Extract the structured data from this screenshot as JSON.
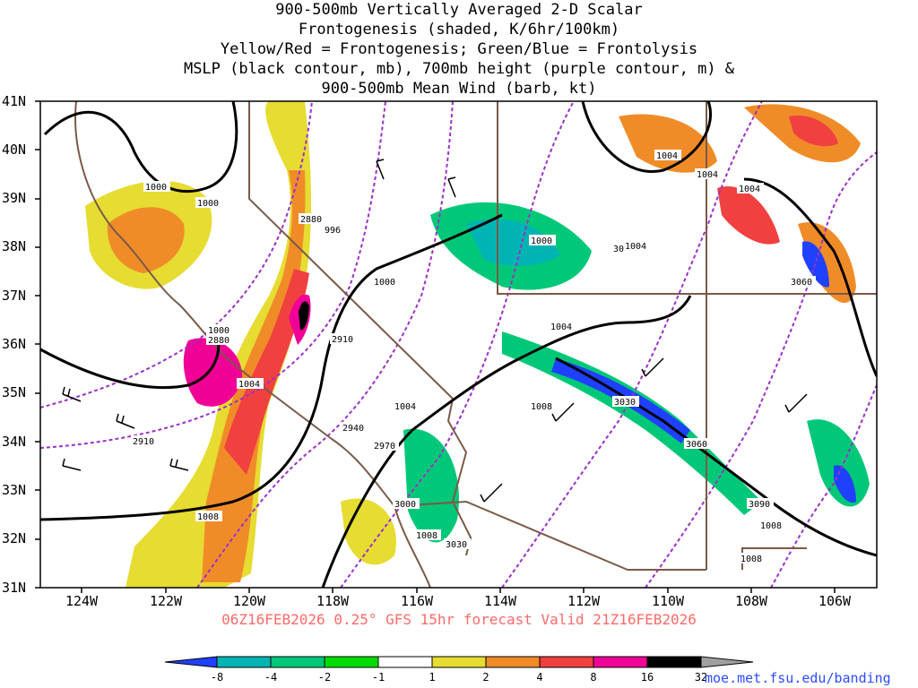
{
  "title_lines": [
    "900-500mb Vertically Averaged 2-D Scalar",
    "Frontogenesis (shaded, K/6hr/100km)",
    "Yellow/Red = Frontogenesis;  Green/Blue = Frontolysis",
    "MSLP (black contour, mb), 700mb height (purple contour, m) &",
    "900-500mb Mean Wind (barb, kt)"
  ],
  "footer": "06Z16FEB2026 0.25° GFS 15hr forecast Valid 21Z16FEB2026",
  "credit": "moe.met.fsu.edu/banding",
  "map": {
    "lon_range": [
      -125,
      -105
    ],
    "lat_range": [
      31,
      41
    ],
    "lon_ticks": [
      "124W",
      "122W",
      "120W",
      "118W",
      "116W",
      "114W",
      "112W",
      "110W",
      "108W",
      "106W"
    ],
    "lat_ticks": [
      "41N",
      "40N",
      "39N",
      "38N",
      "37N",
      "36N",
      "35N",
      "34N",
      "33N",
      "32N",
      "31N"
    ]
  },
  "colorbar": {
    "labels": [
      "-8",
      "-4",
      "-2",
      "-1",
      "1",
      "2",
      "4",
      "8",
      "16",
      "32"
    ],
    "colors": [
      "#2040ff",
      "#00b4b4",
      "#00c878",
      "#00dc00",
      "#ffffff",
      "#e6dc32",
      "#f08c28",
      "#f04040",
      "#f00096",
      "#000000",
      "#a0a0a0"
    ]
  },
  "mslp_labels": [
    "1000",
    "1000",
    "996",
    "1000",
    "1000",
    "1000",
    "1004",
    "1004",
    "1004",
    "1004",
    "1004",
    "1004",
    "1004",
    "1008",
    "1008",
    "1008",
    "1008",
    "1008"
  ],
  "height_labels": [
    "2880",
    "2880",
    "2910",
    "2910",
    "2940",
    "2970",
    "3000",
    "3030",
    "3030",
    "3060",
    "3060",
    "3090",
    "30"
  ],
  "colors": {
    "mslp": "#000000",
    "height": "#9b30c8",
    "borders": "#7a5a48",
    "footer": "#ff6a6a",
    "credit": "#2d4cff"
  }
}
